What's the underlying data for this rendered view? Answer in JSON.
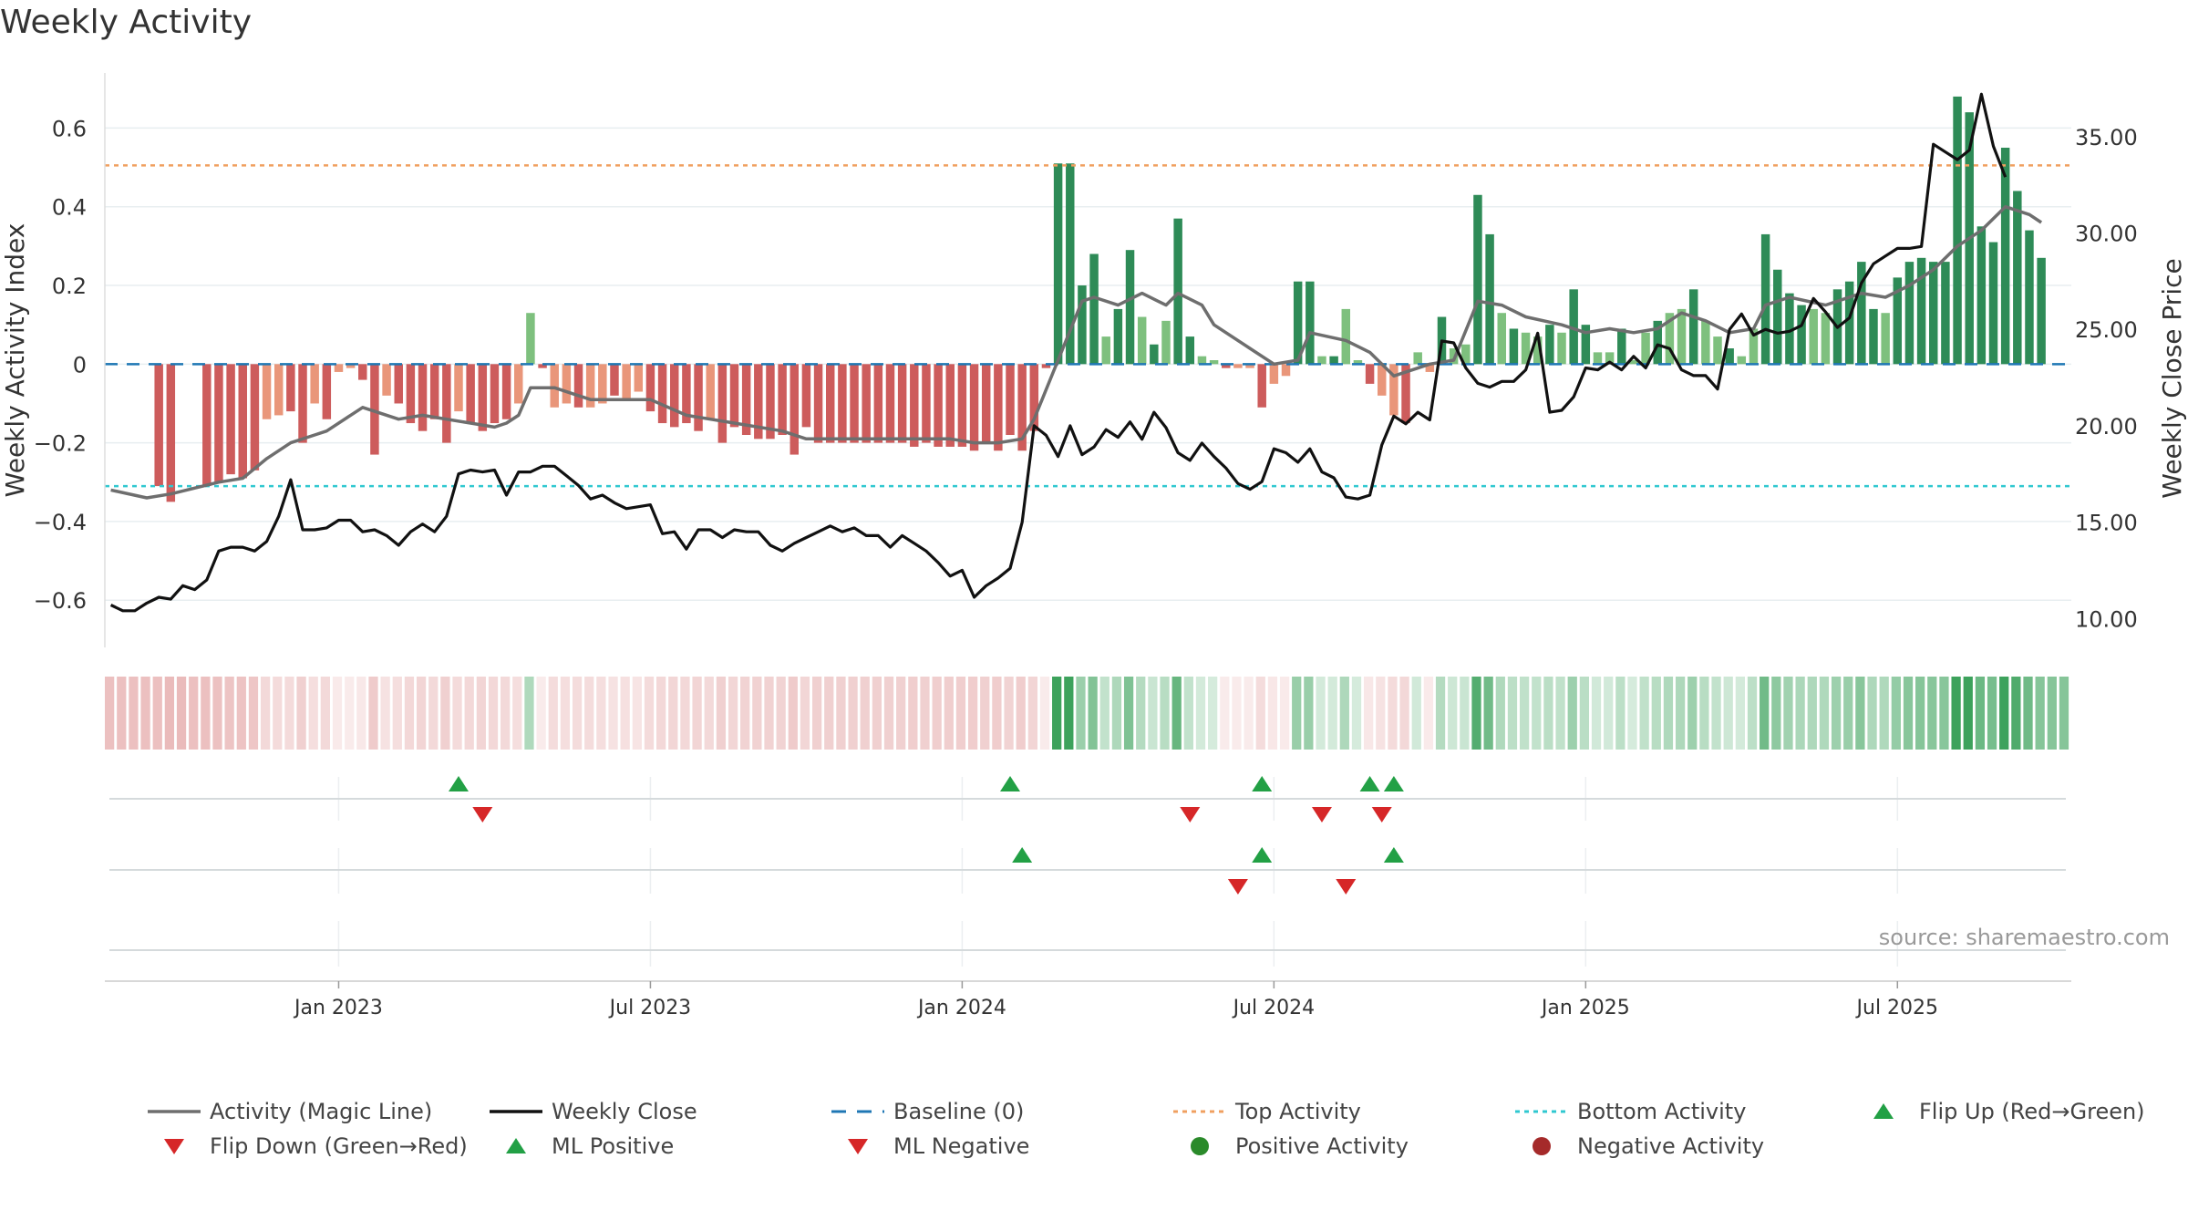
{
  "chart_data": {
    "type": "bar",
    "title": "Weekly Activity",
    "ylabel": "Weekly Activity Index",
    "y2label": "Weekly Close Price",
    "ylim": [
      -0.72,
      0.74
    ],
    "y2lim": [
      8.5,
      38.3
    ],
    "yticks": [
      {
        "value": 0.6,
        "label": "0.6"
      },
      {
        "value": 0.4,
        "label": "0.4"
      },
      {
        "value": 0.2,
        "label": "0.2"
      },
      {
        "value": 0,
        "label": "0"
      },
      {
        "value": -0.2,
        "label": "−0.2"
      },
      {
        "value": -0.4,
        "label": "−0.4"
      },
      {
        "value": -0.6,
        "label": "−0.6"
      }
    ],
    "y2ticks": [
      {
        "value": 35,
        "label": "35.00"
      },
      {
        "value": 30,
        "label": "30.00"
      },
      {
        "value": 25,
        "label": "25.00"
      },
      {
        "value": 20,
        "label": "20.00"
      },
      {
        "value": 15,
        "label": "15.00"
      },
      {
        "value": 10,
        "label": "10.00"
      }
    ],
    "xticks": [
      {
        "week": 19,
        "label": "Jan 2023"
      },
      {
        "week": 45,
        "label": "Jul 2023"
      },
      {
        "week": 71,
        "label": "Jan 2024"
      },
      {
        "week": 97,
        "label": "Jul 2024"
      },
      {
        "week": 123,
        "label": "Jan 2025"
      },
      {
        "week": 149,
        "label": "Jul 2025"
      }
    ],
    "top_activity": 0.505,
    "bottom_activity": -0.31,
    "weeks_total": 164,
    "activity_anchors": [
      [
        4,
        -0.31
      ],
      [
        5,
        -0.35
      ],
      [
        8,
        -0.31
      ],
      [
        9,
        -0.3
      ],
      [
        10,
        -0.28
      ],
      [
        11,
        -0.29
      ],
      [
        12,
        -0.27
      ],
      [
        13,
        -0.14
      ],
      [
        14,
        -0.13
      ],
      [
        15,
        -0.12
      ],
      [
        16,
        -0.2
      ],
      [
        17,
        -0.1
      ],
      [
        18,
        -0.14
      ],
      [
        19,
        -0.02
      ],
      [
        20,
        -0.01
      ],
      [
        21,
        -0.04
      ],
      [
        22,
        -0.23
      ],
      [
        23,
        -0.08
      ],
      [
        24,
        -0.1
      ],
      [
        25,
        -0.15
      ],
      [
        26,
        -0.17
      ],
      [
        27,
        -0.14
      ],
      [
        28,
        -0.2
      ],
      [
        29,
        -0.12
      ],
      [
        30,
        -0.15
      ],
      [
        31,
        -0.17
      ],
      [
        32,
        -0.15
      ],
      [
        33,
        -0.14
      ],
      [
        34,
        -0.1
      ],
      [
        35,
        0.13
      ],
      [
        36,
        -0.01
      ],
      [
        37,
        -0.11
      ],
      [
        38,
        -0.1
      ],
      [
        39,
        -0.11
      ],
      [
        40,
        -0.11
      ],
      [
        41,
        -0.1
      ],
      [
        42,
        -0.08
      ],
      [
        43,
        -0.09
      ],
      [
        44,
        -0.07
      ],
      [
        45,
        -0.12
      ],
      [
        46,
        -0.15
      ],
      [
        47,
        -0.16
      ],
      [
        48,
        -0.15
      ],
      [
        49,
        -0.17
      ],
      [
        50,
        -0.14
      ],
      [
        51,
        -0.2
      ],
      [
        52,
        -0.16
      ],
      [
        53,
        -0.18
      ],
      [
        54,
        -0.19
      ],
      [
        55,
        -0.19
      ],
      [
        56,
        -0.18
      ],
      [
        57,
        -0.23
      ],
      [
        58,
        -0.16
      ],
      [
        59,
        -0.2
      ],
      [
        60,
        -0.2
      ],
      [
        61,
        -0.2
      ],
      [
        62,
        -0.2
      ],
      [
        63,
        -0.2
      ],
      [
        64,
        -0.2
      ],
      [
        65,
        -0.2
      ],
      [
        66,
        -0.2
      ],
      [
        67,
        -0.21
      ],
      [
        68,
        -0.2
      ],
      [
        69,
        -0.21
      ],
      [
        70,
        -0.21
      ],
      [
        71,
        -0.21
      ],
      [
        72,
        -0.22
      ],
      [
        73,
        -0.2
      ],
      [
        74,
        -0.22
      ],
      [
        75,
        -0.18
      ],
      [
        76,
        -0.22
      ],
      [
        77,
        -0.17
      ],
      [
        78,
        -0.01
      ],
      [
        79,
        0.51
      ],
      [
        80,
        0.51
      ],
      [
        81,
        0.2
      ],
      [
        82,
        0.28
      ],
      [
        83,
        0.07
      ],
      [
        84,
        0.14
      ],
      [
        85,
        0.29
      ],
      [
        86,
        0.12
      ],
      [
        87,
        0.05
      ],
      [
        88,
        0.11
      ],
      [
        89,
        0.37
      ],
      [
        90,
        0.07
      ],
      [
        91,
        0.02
      ],
      [
        92,
        0.01
      ],
      [
        93,
        -0.01
      ],
      [
        94,
        -0.01
      ],
      [
        95,
        -0.01
      ],
      [
        96,
        -0.11
      ],
      [
        97,
        -0.05
      ],
      [
        98,
        -0.03
      ],
      [
        99,
        0.21
      ],
      [
        100,
        0.21
      ],
      [
        101,
        0.02
      ],
      [
        102,
        0.02
      ],
      [
        103,
        0.14
      ],
      [
        104,
        0.01
      ],
      [
        105,
        -0.05
      ],
      [
        106,
        -0.08
      ],
      [
        107,
        -0.13
      ],
      [
        108,
        -0.15
      ],
      [
        109,
        0.03
      ],
      [
        110,
        -0.02
      ],
      [
        111,
        0.12
      ],
      [
        112,
        0.04
      ],
      [
        113,
        0.05
      ],
      [
        114,
        0.43
      ],
      [
        115,
        0.33
      ],
      [
        116,
        0.13
      ],
      [
        117,
        0.09
      ],
      [
        118,
        0.08
      ],
      [
        119,
        0.07
      ],
      [
        120,
        0.1
      ],
      [
        121,
        0.08
      ],
      [
        122,
        0.19
      ],
      [
        123,
        0.1
      ],
      [
        124,
        0.03
      ],
      [
        125,
        0.03
      ],
      [
        126,
        0.09
      ],
      [
        127,
        0.01
      ],
      [
        128,
        0.08
      ],
      [
        129,
        0.11
      ],
      [
        130,
        0.13
      ],
      [
        131,
        0.14
      ],
      [
        132,
        0.19
      ],
      [
        133,
        0.11
      ],
      [
        134,
        0.07
      ],
      [
        135,
        0.04
      ],
      [
        136,
        0.02
      ],
      [
        137,
        0.09
      ],
      [
        138,
        0.33
      ],
      [
        139,
        0.24
      ],
      [
        140,
        0.18
      ],
      [
        141,
        0.15
      ],
      [
        142,
        0.14
      ],
      [
        143,
        0.13
      ],
      [
        144,
        0.19
      ],
      [
        145,
        0.21
      ],
      [
        146,
        0.26
      ],
      [
        147,
        0.14
      ],
      [
        148,
        0.13
      ],
      [
        149,
        0.22
      ],
      [
        150,
        0.26
      ],
      [
        151,
        0.27
      ],
      [
        152,
        0.26
      ],
      [
        153,
        0.26
      ],
      [
        154,
        0.68
      ],
      [
        155,
        0.64
      ],
      [
        156,
        0.35
      ],
      [
        157,
        0.31
      ],
      [
        158,
        0.55
      ],
      [
        159,
        0.44
      ],
      [
        160,
        0.34
      ],
      [
        161,
        0.27
      ]
    ],
    "magic_line_anchors": [
      [
        0,
        -0.32
      ],
      [
        3,
        -0.34
      ],
      [
        5,
        -0.33
      ],
      [
        9,
        -0.3
      ],
      [
        11,
        -0.29
      ],
      [
        13,
        -0.24
      ],
      [
        15,
        -0.2
      ],
      [
        17,
        -0.18
      ],
      [
        18,
        -0.17
      ],
      [
        20,
        -0.13
      ],
      [
        21,
        -0.11
      ],
      [
        22,
        -0.12
      ],
      [
        24,
        -0.14
      ],
      [
        26,
        -0.13
      ],
      [
        30,
        -0.15
      ],
      [
        32,
        -0.16
      ],
      [
        33,
        -0.15
      ],
      [
        34,
        -0.13
      ],
      [
        35,
        -0.06
      ],
      [
        37,
        -0.06
      ],
      [
        40,
        -0.09
      ],
      [
        42,
        -0.09
      ],
      [
        45,
        -0.09
      ],
      [
        48,
        -0.13
      ],
      [
        52,
        -0.15
      ],
      [
        56,
        -0.17
      ],
      [
        58,
        -0.19
      ],
      [
        62,
        -0.19
      ],
      [
        66,
        -0.19
      ],
      [
        70,
        -0.19
      ],
      [
        72,
        -0.2
      ],
      [
        74,
        -0.2
      ],
      [
        76,
        -0.19
      ],
      [
        77,
        -0.14
      ],
      [
        79,
        0.01
      ],
      [
        81,
        0.16
      ],
      [
        82,
        0.17
      ],
      [
        84,
        0.15
      ],
      [
        86,
        0.18
      ],
      [
        88,
        0.15
      ],
      [
        89,
        0.18
      ],
      [
        91,
        0.15
      ],
      [
        92,
        0.1
      ],
      [
        95,
        0.04
      ],
      [
        97,
        0.0
      ],
      [
        99,
        0.01
      ],
      [
        100,
        0.08
      ],
      [
        103,
        0.06
      ],
      [
        105,
        0.03
      ],
      [
        107,
        -0.03
      ],
      [
        110,
        0.0
      ],
      [
        112,
        0.01
      ],
      [
        114,
        0.16
      ],
      [
        116,
        0.15
      ],
      [
        118,
        0.12
      ],
      [
        121,
        0.1
      ],
      [
        123,
        0.08
      ],
      [
        125,
        0.09
      ],
      [
        127,
        0.08
      ],
      [
        129,
        0.09
      ],
      [
        131,
        0.13
      ],
      [
        133,
        0.11
      ],
      [
        135,
        0.08
      ],
      [
        137,
        0.09
      ],
      [
        138,
        0.15
      ],
      [
        140,
        0.17
      ],
      [
        143,
        0.15
      ],
      [
        146,
        0.18
      ],
      [
        148,
        0.17
      ],
      [
        150,
        0.2
      ],
      [
        152,
        0.24
      ],
      [
        154,
        0.3
      ],
      [
        156,
        0.34
      ],
      [
        158,
        0.4
      ],
      [
        160,
        0.38
      ],
      [
        161,
        0.36
      ]
    ],
    "close_anchors": [
      [
        0,
        10.7
      ],
      [
        1,
        10.4
      ],
      [
        2,
        10.4
      ],
      [
        3,
        10.8
      ],
      [
        4,
        11.1
      ],
      [
        5,
        11.0
      ],
      [
        6,
        11.7
      ],
      [
        7,
        11.5
      ],
      [
        8,
        12.0
      ],
      [
        9,
        13.5
      ],
      [
        10,
        13.7
      ],
      [
        11,
        13.7
      ],
      [
        12,
        13.5
      ],
      [
        13,
        14.0
      ],
      [
        14,
        15.3
      ],
      [
        15,
        17.2
      ],
      [
        16,
        14.6
      ],
      [
        17,
        14.6
      ],
      [
        18,
        14.7
      ],
      [
        19,
        15.1
      ],
      [
        20,
        15.1
      ],
      [
        21,
        14.5
      ],
      [
        22,
        14.6
      ],
      [
        23,
        14.3
      ],
      [
        24,
        13.8
      ],
      [
        25,
        14.5
      ],
      [
        26,
        14.9
      ],
      [
        27,
        14.5
      ],
      [
        28,
        15.3
      ],
      [
        29,
        17.5
      ],
      [
        30,
        17.7
      ],
      [
        31,
        17.6
      ],
      [
        32,
        17.7
      ],
      [
        33,
        16.4
      ],
      [
        34,
        17.6
      ],
      [
        35,
        17.6
      ],
      [
        36,
        17.9
      ],
      [
        37,
        17.9
      ],
      [
        38,
        17.4
      ],
      [
        39,
        16.9
      ],
      [
        40,
        16.2
      ],
      [
        41,
        16.4
      ],
      [
        42,
        16.0
      ],
      [
        43,
        15.7
      ],
      [
        44,
        15.8
      ],
      [
        45,
        15.9
      ],
      [
        46,
        14.4
      ],
      [
        47,
        14.5
      ],
      [
        48,
        13.6
      ],
      [
        49,
        14.6
      ],
      [
        50,
        14.6
      ],
      [
        51,
        14.2
      ],
      [
        52,
        14.6
      ],
      [
        53,
        14.5
      ],
      [
        54,
        14.5
      ],
      [
        55,
        13.8
      ],
      [
        56,
        13.5
      ],
      [
        57,
        13.9
      ],
      [
        58,
        14.2
      ],
      [
        59,
        14.5
      ],
      [
        60,
        14.8
      ],
      [
        61,
        14.5
      ],
      [
        62,
        14.7
      ],
      [
        63,
        14.3
      ],
      [
        64,
        14.3
      ],
      [
        65,
        13.7
      ],
      [
        66,
        14.3
      ],
      [
        67,
        13.9
      ],
      [
        68,
        13.5
      ],
      [
        69,
        12.9
      ],
      [
        70,
        12.2
      ],
      [
        71,
        12.5
      ],
      [
        72,
        11.1
      ],
      [
        73,
        11.7
      ],
      [
        74,
        12.1
      ],
      [
        75,
        12.6
      ],
      [
        76,
        15.0
      ],
      [
        77,
        20.0
      ],
      [
        78,
        19.5
      ],
      [
        79,
        18.4
      ],
      [
        80,
        20.0
      ],
      [
        81,
        18.5
      ],
      [
        82,
        18.9
      ],
      [
        83,
        19.8
      ],
      [
        84,
        19.4
      ],
      [
        85,
        20.2
      ],
      [
        86,
        19.3
      ],
      [
        87,
        20.7
      ],
      [
        88,
        19.9
      ],
      [
        89,
        18.6
      ],
      [
        90,
        18.2
      ],
      [
        91,
        19.1
      ],
      [
        92,
        18.4
      ],
      [
        93,
        17.8
      ],
      [
        94,
        17.0
      ],
      [
        95,
        16.7
      ],
      [
        96,
        17.1
      ],
      [
        97,
        18.8
      ],
      [
        98,
        18.6
      ],
      [
        99,
        18.1
      ],
      [
        100,
        18.8
      ],
      [
        101,
        17.6
      ],
      [
        102,
        17.3
      ],
      [
        103,
        16.3
      ],
      [
        104,
        16.2
      ],
      [
        105,
        16.4
      ],
      [
        106,
        19.0
      ],
      [
        107,
        20.5
      ],
      [
        108,
        20.1
      ],
      [
        109,
        20.7
      ],
      [
        110,
        20.3
      ],
      [
        111,
        24.4
      ],
      [
        112,
        24.3
      ],
      [
        113,
        23.0
      ],
      [
        114,
        22.2
      ],
      [
        115,
        22.0
      ],
      [
        116,
        22.3
      ],
      [
        117,
        22.3
      ],
      [
        118,
        22.9
      ],
      [
        119,
        24.8
      ],
      [
        120,
        20.7
      ],
      [
        121,
        20.8
      ],
      [
        122,
        21.5
      ],
      [
        123,
        23.0
      ],
      [
        124,
        22.9
      ],
      [
        125,
        23.3
      ],
      [
        126,
        22.9
      ],
      [
        127,
        23.6
      ],
      [
        128,
        23.0
      ],
      [
        129,
        24.2
      ],
      [
        130,
        24.0
      ],
      [
        131,
        22.9
      ],
      [
        132,
        22.6
      ],
      [
        133,
        22.6
      ],
      [
        134,
        21.9
      ],
      [
        135,
        25.0
      ],
      [
        136,
        25.8
      ],
      [
        137,
        24.7
      ],
      [
        138,
        25.0
      ],
      [
        139,
        24.8
      ],
      [
        140,
        24.9
      ],
      [
        141,
        25.2
      ],
      [
        142,
        26.6
      ],
      [
        143,
        25.9
      ],
      [
        144,
        25.1
      ],
      [
        145,
        25.6
      ],
      [
        146,
        27.4
      ],
      [
        147,
        28.4
      ],
      [
        148,
        28.8
      ],
      [
        149,
        29.2
      ],
      [
        150,
        29.2
      ],
      [
        151,
        29.3
      ],
      [
        152,
        34.6
      ],
      [
        153,
        34.2
      ],
      [
        154,
        33.8
      ],
      [
        155,
        34.3
      ],
      [
        156,
        37.2
      ],
      [
        157,
        34.5
      ],
      [
        158,
        32.9
      ]
    ],
    "flip_up_weeks": [
      29,
      75,
      96,
      105,
      107
    ],
    "flip_down_weeks": [
      31,
      90,
      101,
      106
    ],
    "ml_positive_weeks": [
      76,
      96,
      107
    ],
    "ml_negative_weeks": [
      94,
      103
    ],
    "legend": [
      {
        "key": "magic",
        "label": "Activity (Magic Line)"
      },
      {
        "key": "close",
        "label": "Weekly Close"
      },
      {
        "key": "baseline",
        "label": "Baseline (0)"
      },
      {
        "key": "top",
        "label": "Top Activity"
      },
      {
        "key": "bottom",
        "label": "Bottom Activity"
      },
      {
        "key": "flipup",
        "label": "Flip Up (Red→Green)"
      },
      {
        "key": "flipdown",
        "label": "Flip Down (Green→Red)"
      },
      {
        "key": "mlpos",
        "label": "ML Positive"
      },
      {
        "key": "mlneg",
        "label": "ML Negative"
      },
      {
        "key": "posact",
        "label": "Positive Activity"
      },
      {
        "key": "negact",
        "label": "Negative Activity"
      }
    ],
    "source": "source: sharemaestro.com"
  },
  "colors": {
    "pos_dark": "#2e8b57",
    "pos_light": "#7ec07e",
    "neg_dark": "#cd5c5c",
    "neg_light": "#e9967a",
    "magic_line": "#6e6e6e",
    "close_line": "#111111",
    "baseline": "#1f77b4",
    "top": "#f0a060",
    "bottom": "#30c8d0",
    "tri_green": "#22a045",
    "tri_red": "#d62728",
    "dot_green": "#2a8a2a",
    "dot_red": "#a52a2a"
  }
}
